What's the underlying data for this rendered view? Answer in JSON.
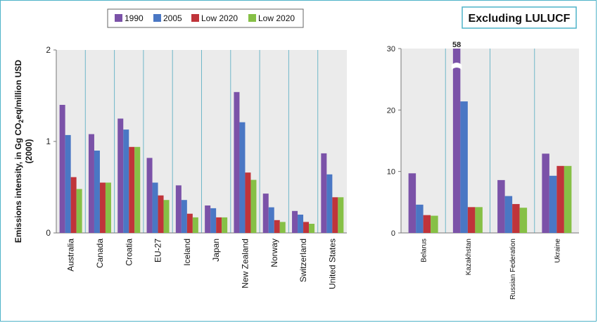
{
  "colors": {
    "1990": "#7b52a8",
    "2005": "#4a77c4",
    "Low 2020 red": "#c0343a",
    "Low 2020 green": "#86c046",
    "plot_bg": "#ebebeb",
    "grid": "#6fb7c9"
  },
  "legend": {
    "items": [
      "1990",
      "2005",
      "Low 2020",
      "Low 2020"
    ]
  },
  "ylabel_line1": "Emissions intensity, in Gg CO",
  "ylabel_sub": "2",
  "ylabel_line1_rest": "eq/million USD",
  "ylabel_line2": "(2000)",
  "right_title": "Excluding LULUCF",
  "kazakhstan_annotation": "58",
  "chart_data": [
    {
      "type": "bar",
      "categories": [
        "Australia",
        "Canada",
        "Croatia",
        "EU-27",
        "Iceland",
        "Japan",
        "New Zealand",
        "Norway",
        "Switzerland",
        "United States"
      ],
      "series": [
        {
          "name": "1990",
          "values": [
            1.4,
            1.08,
            1.25,
            0.82,
            0.52,
            0.3,
            1.54,
            0.43,
            0.24,
            0.87
          ]
        },
        {
          "name": "2005",
          "values": [
            1.07,
            0.9,
            1.13,
            0.55,
            0.36,
            0.27,
            1.21,
            0.28,
            0.2,
            0.64
          ]
        },
        {
          "name": "Low 2020",
          "values": [
            0.61,
            0.55,
            0.94,
            0.41,
            0.21,
            0.17,
            0.66,
            0.14,
            0.12,
            0.39
          ]
        },
        {
          "name": "Low 2020",
          "values": [
            0.48,
            0.55,
            0.94,
            0.36,
            0.17,
            0.17,
            0.58,
            0.12,
            0.1,
            0.39
          ]
        }
      ],
      "yticks": [
        "0",
        "1",
        "2"
      ],
      "ylim": [
        0,
        2
      ],
      "ylabel": "Emissions intensity, in Gg CO2eq/million USD (2000)"
    },
    {
      "type": "bar",
      "title": "Excluding LULUCF",
      "categories": [
        "Belarus",
        "Kazakhstan",
        "Russian Federation",
        "Ukraine"
      ],
      "series": [
        {
          "name": "1990",
          "values": [
            9.7,
            58,
            8.6,
            12.9
          ]
        },
        {
          "name": "2005",
          "values": [
            4.6,
            21.4,
            6.0,
            9.3
          ]
        },
        {
          "name": "Low 2020",
          "values": [
            2.9,
            4.2,
            4.7,
            10.9
          ]
        },
        {
          "name": "Low 2020",
          "values": [
            2.8,
            4.2,
            4.1,
            10.9
          ]
        }
      ],
      "yticks": [
        "0",
        "10",
        "20",
        "30"
      ],
      "ylim": [
        0,
        30
      ],
      "axis_break": "Kazakhstan 1990 bar truncated, labelled 58"
    }
  ]
}
